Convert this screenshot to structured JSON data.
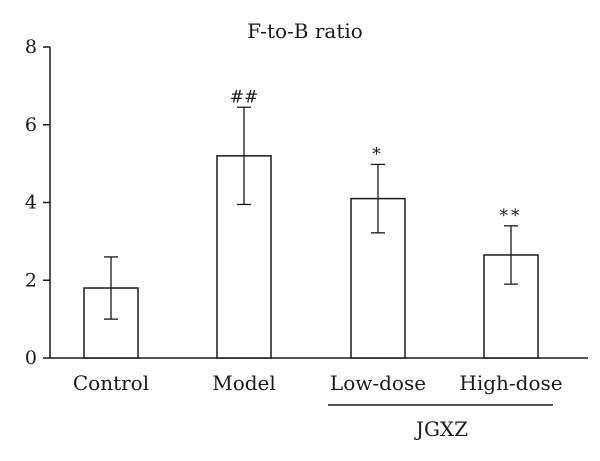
{
  "chart_data": {
    "type": "bar",
    "title": "F-to-B ratio",
    "xlabel": "",
    "ylabel": "",
    "categories": [
      "Control",
      "Model",
      "Low-dose",
      "High-dose"
    ],
    "values": [
      1.8,
      5.2,
      4.1,
      2.65
    ],
    "error": [
      0.8,
      1.25,
      0.88,
      0.75
    ],
    "annotations": [
      "",
      "##",
      "*",
      "**"
    ],
    "ylim": [
      0,
      8
    ],
    "yticks": [
      "0",
      "2",
      "4",
      "6",
      "8"
    ],
    "group_label": "JGXZ",
    "group_members": [
      "Low-dose",
      "High-dose"
    ],
    "grid": false,
    "legend": "none",
    "colors": {
      "bar_fill": "#ffffff",
      "stroke": "#1a1a1a"
    }
  }
}
